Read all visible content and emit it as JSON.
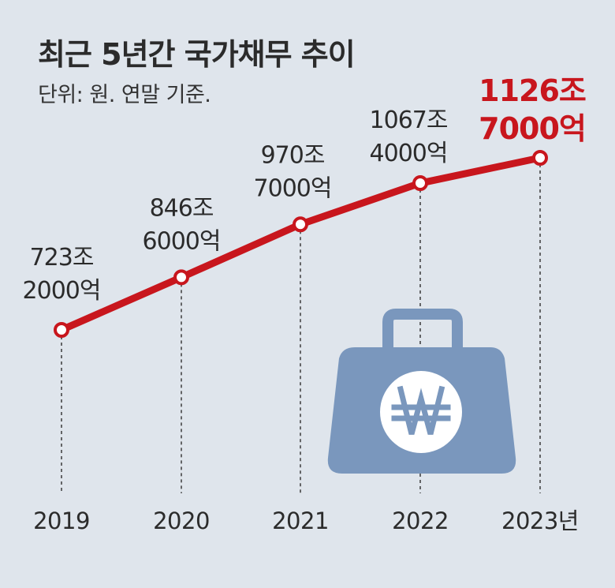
{
  "title": "최근 5년간 국가채무 추이",
  "subtitle": "단위: 원. 연말 기준.",
  "colors": {
    "line": "#c8161d",
    "highlight_label": "#c8161d",
    "label": "#2b2b2b",
    "background": "#dfe5ec",
    "bag": "#7a97bd"
  },
  "icons": [
    "money-bag-icon",
    "won-sign-icon"
  ],
  "chart_data": {
    "type": "line",
    "title": "최근 5년간 국가채무 추이",
    "unit": "단위: 원. 연말 기준.",
    "categories": [
      "2019",
      "2020",
      "2021",
      "2022",
      "2023년"
    ],
    "values": [
      723.2,
      846.6,
      970.7,
      1067.4,
      1126.7
    ],
    "data_labels": [
      [
        "723조",
        "2000억"
      ],
      [
        "846조",
        "6000억"
      ],
      [
        "970조",
        "7000억"
      ],
      [
        "1067조",
        "4000억"
      ],
      [
        "1126조",
        "7000억"
      ]
    ],
    "highlight_index": 4,
    "grid": false,
    "legend": "none"
  }
}
